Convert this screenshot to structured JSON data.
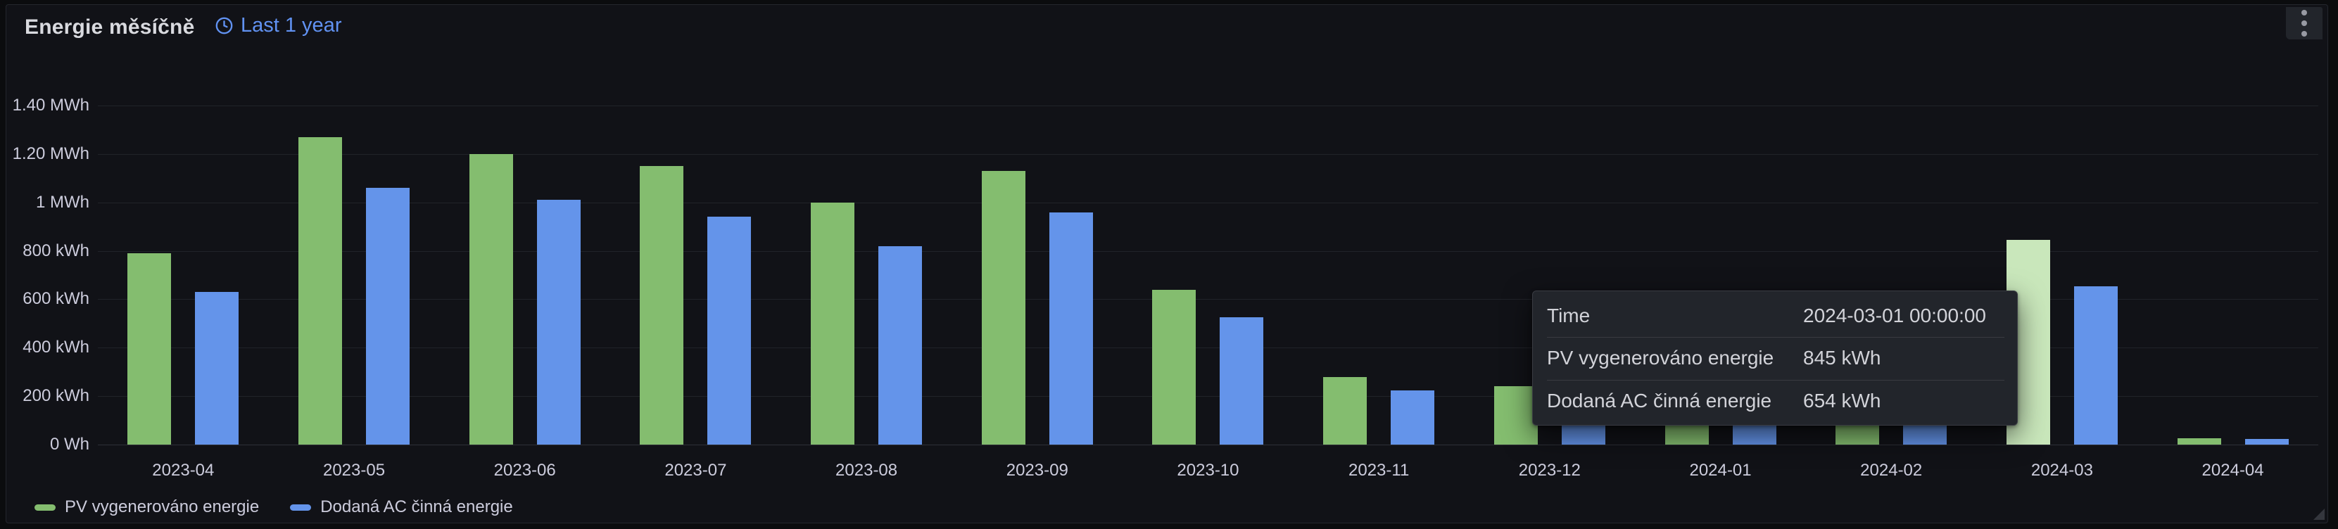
{
  "panel": {
    "title": "Energie měsíčně",
    "time_range_label": "Last 1 year"
  },
  "colors": {
    "pv_green": "#84bd6f",
    "ac_blue": "#6494ea",
    "hover_highlight_green": "#c9e7bb",
    "link_blue": "#6192f2",
    "panel_bg": "#111217",
    "axis_text": "#ccccdc"
  },
  "legend": {
    "items": [
      {
        "label": "PV vygenerováno energie",
        "color": "#84bd6f"
      },
      {
        "label": "Dodaná AC činná energie",
        "color": "#6494ea"
      }
    ]
  },
  "tooltip": {
    "rows": [
      {
        "label": "Time",
        "value": "2024-03-01 00:00:00"
      },
      {
        "label": "PV vygenerováno energie",
        "value": "845 kWh"
      },
      {
        "label": "Dodaná AC činná energie",
        "value": "654 kWh"
      }
    ]
  },
  "chart_data": {
    "type": "bar",
    "title": "Energie měsíčně",
    "categories": [
      "2023-04",
      "2023-05",
      "2023-06",
      "2023-07",
      "2023-08",
      "2023-09",
      "2023-10",
      "2023-11",
      "2023-12",
      "2024-01",
      "2024-02",
      "2024-03",
      "2024-04"
    ],
    "series": [
      {
        "name": "PV vygenerováno energie",
        "color": "#84bd6f",
        "values": [
          790,
          1270,
          1200,
          1150,
          1000,
          1130,
          640,
          280,
          240,
          190,
          430,
          845,
          26
        ]
      },
      {
        "name": "Dodaná AC činná energie",
        "color": "#6494ea",
        "values": [
          630,
          1060,
          1010,
          940,
          820,
          960,
          525,
          225,
          150,
          170,
          380,
          654,
          22
        ]
      }
    ],
    "unit": "kWh",
    "ylim": [
      0,
      1400
    ],
    "y_ticks": [
      {
        "value": 0,
        "label": "0 Wh"
      },
      {
        "value": 200,
        "label": "200 kWh"
      },
      {
        "value": 400,
        "label": "400 kWh"
      },
      {
        "value": 600,
        "label": "600 kWh"
      },
      {
        "value": 800,
        "label": "800 kWh"
      },
      {
        "value": 1000,
        "label": "1 MWh"
      },
      {
        "value": 1200,
        "label": "1.20 MWh"
      },
      {
        "value": 1400,
        "label": "1.40 MWh"
      }
    ],
    "grid": true,
    "legend_position": "bottom-left",
    "hovered_bar": {
      "category": "2024-03",
      "series": "PV vygenerováno energie",
      "highlight_color": "#c9e7bb"
    }
  }
}
